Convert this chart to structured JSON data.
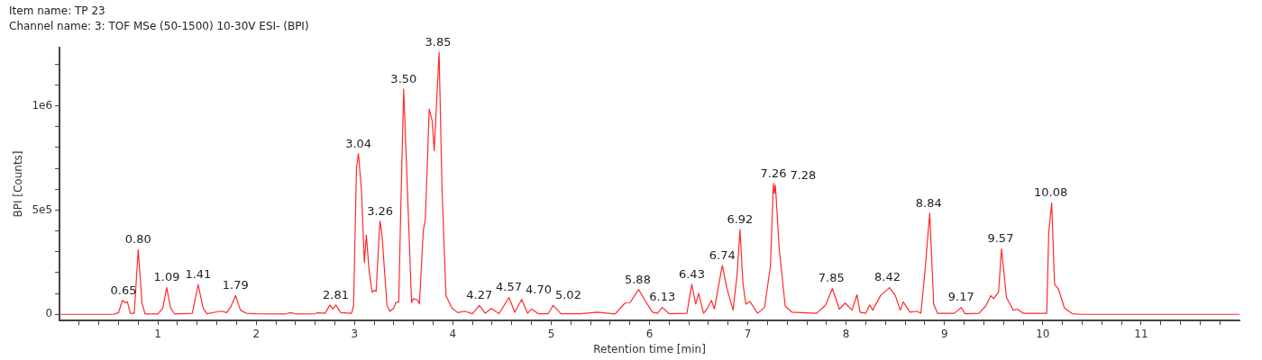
{
  "chart_data": {
    "type": "line",
    "title": "Item name: TP 23",
    "subtitle": "Channel name: 3: TOF MSe (50-1500) 10-30V ESI- (BPI)",
    "xlabel": "Retention time [min]",
    "ylabel": "BPI [Counts]",
    "x": [
      0,
      0.55,
      0.6,
      0.64,
      0.67,
      0.69,
      0.72,
      0.76,
      0.8,
      0.84,
      0.87,
      1.0,
      1.05,
      1.09,
      1.13,
      1.17,
      1.35,
      1.41,
      1.46,
      1.5,
      1.6,
      1.65,
      1.7,
      1.74,
      1.79,
      1.84,
      1.9,
      2.0,
      2.3,
      2.35,
      2.4,
      2.6,
      2.63,
      2.7,
      2.75,
      2.78,
      2.81,
      2.86,
      2.97,
      2.99,
      3.02,
      3.04,
      3.07,
      3.1,
      3.12,
      3.15,
      3.18,
      3.2,
      3.22,
      3.25,
      3.26,
      3.28,
      3.33,
      3.36,
      3.4,
      3.42,
      3.45,
      3.47,
      3.5,
      3.53,
      3.58,
      3.6,
      3.64,
      3.66,
      3.7,
      3.72,
      3.76,
      3.79,
      3.81,
      3.86,
      3.89,
      3.93,
      3.99,
      4.05,
      4.12,
      4.2,
      4.27,
      4.33,
      4.39,
      4.47,
      4.57,
      4.63,
      4.7,
      4.76,
      4.8,
      4.87,
      4.97,
      5.02,
      5.1,
      5.3,
      5.47,
      5.65,
      5.75,
      5.8,
      5.89,
      5.95,
      6.03,
      6.08,
      6.13,
      6.2,
      6.38,
      6.43,
      6.47,
      6.5,
      6.55,
      6.59,
      6.63,
      6.66,
      6.74,
      6.79,
      6.85,
      6.89,
      6.92,
      6.95,
      6.98,
      7.02,
      7.1,
      7.17,
      7.23,
      7.26,
      7.27,
      7.28,
      7.32,
      7.38,
      7.45,
      7.7,
      7.79,
      7.86,
      7.93,
      7.99,
      8.06,
      8.11,
      8.14,
      8.2,
      8.24,
      8.27,
      8.35,
      8.44,
      8.5,
      8.55,
      8.58,
      8.65,
      8.72,
      8.76,
      8.8,
      8.85,
      8.89,
      8.93,
      9.1,
      9.17,
      9.21,
      9.35,
      9.42,
      9.47,
      9.5,
      9.55,
      9.58,
      9.63,
      9.7,
      9.74,
      9.8,
      10.04,
      10.06,
      10.09,
      10.12,
      10.16,
      10.22,
      10.3,
      10.4,
      12
    ],
    "series": [
      {
        "color": "#ff2a2a",
        "values": [
          0,
          0,
          8000,
          67000,
          55000,
          60000,
          5000,
          5000,
          310000,
          50000,
          2000,
          2000,
          30000,
          128000,
          30000,
          2000,
          5000,
          143000,
          30000,
          3000,
          12000,
          15000,
          8000,
          35000,
          90000,
          20000,
          5000,
          3000,
          2000,
          8000,
          2000,
          3000,
          8000,
          5000,
          45000,
          25000,
          45000,
          8000,
          5000,
          40000,
          700000,
          771000,
          600000,
          248000,
          381000,
          200000,
          105000,
          115000,
          110000,
          380000,
          447000,
          376000,
          43000,
          14000,
          30000,
          57000,
          60000,
          500000,
          1080000,
          700000,
          57000,
          75000,
          70000,
          50000,
          405000,
          452000,
          985000,
          928000,
          785000,
          1257000,
          600000,
          90000,
          30000,
          8000,
          15000,
          3000,
          43000,
          5000,
          28000,
          3000,
          81000,
          10000,
          71000,
          5000,
          25000,
          3000,
          3000,
          43000,
          3000,
          3000,
          10000,
          2000,
          54000,
          55000,
          119000,
          70000,
          10000,
          5000,
          33000,
          3000,
          5000,
          144000,
          49000,
          101000,
          5000,
          30000,
          67000,
          25000,
          235000,
          120000,
          20000,
          185000,
          406000,
          150000,
          49000,
          62000,
          5000,
          33000,
          232000,
          628000,
          580000,
          620000,
          311000,
          40000,
          10000,
          5000,
          43000,
          124000,
          25000,
          54000,
          20000,
          94000,
          10000,
          5000,
          45000,
          20000,
          90000,
          128000,
          90000,
          20000,
          60000,
          10000,
          15000,
          5000,
          200000,
          485000,
          49000,
          5000,
          5000,
          33000,
          3000,
          5000,
          40000,
          90000,
          75000,
          107000,
          314000,
          81000,
          20000,
          25000,
          5000,
          5000,
          390000,
          535000,
          144000,
          120000,
          30000,
          3000,
          0,
          0
        ]
      }
    ],
    "xlim": [
      0,
      12
    ],
    "ylim": [
      -30000,
      1280000
    ],
    "xticks": [
      {
        "value": 0.2,
        "label": null
      },
      {
        "value": 0.4,
        "label": null
      },
      {
        "value": 0.6,
        "label": null
      },
      {
        "value": 0.8,
        "label": null
      },
      1,
      {
        "value": 1.2,
        "label": null
      },
      {
        "value": 1.4,
        "label": null
      },
      {
        "value": 1.6,
        "label": null
      },
      {
        "value": 1.8,
        "label": null
      },
      2,
      {
        "value": 2.2,
        "label": null
      },
      {
        "value": 2.4,
        "label": null
      },
      {
        "value": 2.6,
        "label": null
      },
      {
        "value": 2.8,
        "label": null
      },
      3,
      {
        "value": 3.2,
        "label": null
      },
      {
        "value": 3.4,
        "label": null
      },
      {
        "value": 3.6,
        "label": null
      },
      {
        "value": 3.8,
        "label": null
      },
      4,
      {
        "value": 4.2,
        "label": null
      },
      {
        "value": 4.4,
        "label": null
      },
      {
        "value": 4.6,
        "label": null
      },
      {
        "value": 4.8,
        "label": null
      },
      5,
      {
        "value": 5.2,
        "label": null
      },
      {
        "value": 5.4,
        "label": null
      },
      {
        "value": 5.6,
        "label": null
      },
      {
        "value": 5.8,
        "label": null
      },
      6,
      {
        "value": 6.2,
        "label": null
      },
      {
        "value": 6.4,
        "label": null
      },
      {
        "value": 6.6,
        "label": null
      },
      {
        "value": 6.8,
        "label": null
      },
      7,
      {
        "value": 7.2,
        "label": null
      },
      {
        "value": 7.4,
        "label": null
      },
      {
        "value": 7.6,
        "label": null
      },
      {
        "value": 7.8,
        "label": null
      },
      8,
      {
        "value": 8.2,
        "label": null
      },
      {
        "value": 8.4,
        "label": null
      },
      {
        "value": 8.6,
        "label": null
      },
      {
        "value": 8.8,
        "label": null
      },
      9,
      {
        "value": 9.2,
        "label": null
      },
      {
        "value": 9.4,
        "label": null
      },
      {
        "value": 9.6,
        "label": null
      },
      {
        "value": 9.8,
        "label": null
      },
      10,
      {
        "value": 10.2,
        "label": null
      },
      {
        "value": 10.4,
        "label": null
      },
      {
        "value": 10.6,
        "label": null
      },
      {
        "value": 10.8,
        "label": null
      },
      11,
      {
        "value": 11.2,
        "label": null
      },
      {
        "value": 11.4,
        "label": null
      },
      {
        "value": 11.6,
        "label": null
      },
      {
        "value": 11.8,
        "label": null
      }
    ],
    "yticks": [
      0,
      {
        "value": 100000,
        "label": null
      },
      {
        "value": 200000,
        "label": null
      },
      {
        "value": 300000,
        "label": null
      },
      {
        "value": 400000,
        "label": null
      },
      {
        "value": 500000,
        "label": "5e5"
      },
      {
        "value": 600000,
        "label": null
      },
      {
        "value": 700000,
        "label": null
      },
      {
        "value": 800000,
        "label": null
      },
      {
        "value": 900000,
        "label": null
      },
      {
        "value": 1000000,
        "label": "1e6"
      },
      {
        "value": 1100000,
        "label": null
      },
      {
        "value": 1200000,
        "label": null
      }
    ],
    "grid": false,
    "legend": false,
    "annotations": [
      {
        "text": "0.65",
        "x": 0.65,
        "y": 67000
      },
      {
        "text": "0.80",
        "x": 0.8,
        "y": 310000
      },
      {
        "text": "1.09",
        "x": 1.09,
        "y": 128000
      },
      {
        "text": "1.41",
        "x": 1.41,
        "y": 143000
      },
      {
        "text": "1.79",
        "x": 1.79,
        "y": 90000
      },
      {
        "text": "2.81",
        "x": 2.81,
        "y": 45000
      },
      {
        "text": "3.04",
        "x": 3.04,
        "y": 771000
      },
      {
        "text": "3.26",
        "x": 3.26,
        "y": 447000
      },
      {
        "text": "3.50",
        "x": 3.5,
        "y": 1080000
      },
      {
        "text": "3.85",
        "x": 3.85,
        "y": 1257000
      },
      {
        "text": "4.27",
        "x": 4.27,
        "y": 43000
      },
      {
        "text": "4.57",
        "x": 4.57,
        "y": 81000
      },
      {
        "text": "4.70",
        "x": 4.7,
        "y": 71000
      },
      {
        "text": "5.02",
        "x": 5.02,
        "y": 43000
      },
      {
        "text": "5.88",
        "x": 5.88,
        "y": 119000
      },
      {
        "text": "6.13",
        "x": 6.13,
        "y": 33000
      },
      {
        "text": "6.43",
        "x": 6.43,
        "y": 144000
      },
      {
        "text": "6.74",
        "x": 6.74,
        "y": 235000
      },
      {
        "text": "6.92",
        "x": 6.92,
        "y": 406000
      },
      {
        "text": "7.26",
        "x": 7.26,
        "y": 628000
      },
      {
        "text": "7.28",
        "x": 7.28,
        "y": 620000
      },
      {
        "text": "7.85",
        "x": 7.85,
        "y": 124000
      },
      {
        "text": "8.42",
        "x": 8.42,
        "y": 128000
      },
      {
        "text": "8.84",
        "x": 8.84,
        "y": 485000
      },
      {
        "text": "9.17",
        "x": 9.17,
        "y": 33000
      },
      {
        "text": "9.57",
        "x": 9.57,
        "y": 314000
      },
      {
        "text": "10.08",
        "x": 10.08,
        "y": 535000
      }
    ]
  }
}
